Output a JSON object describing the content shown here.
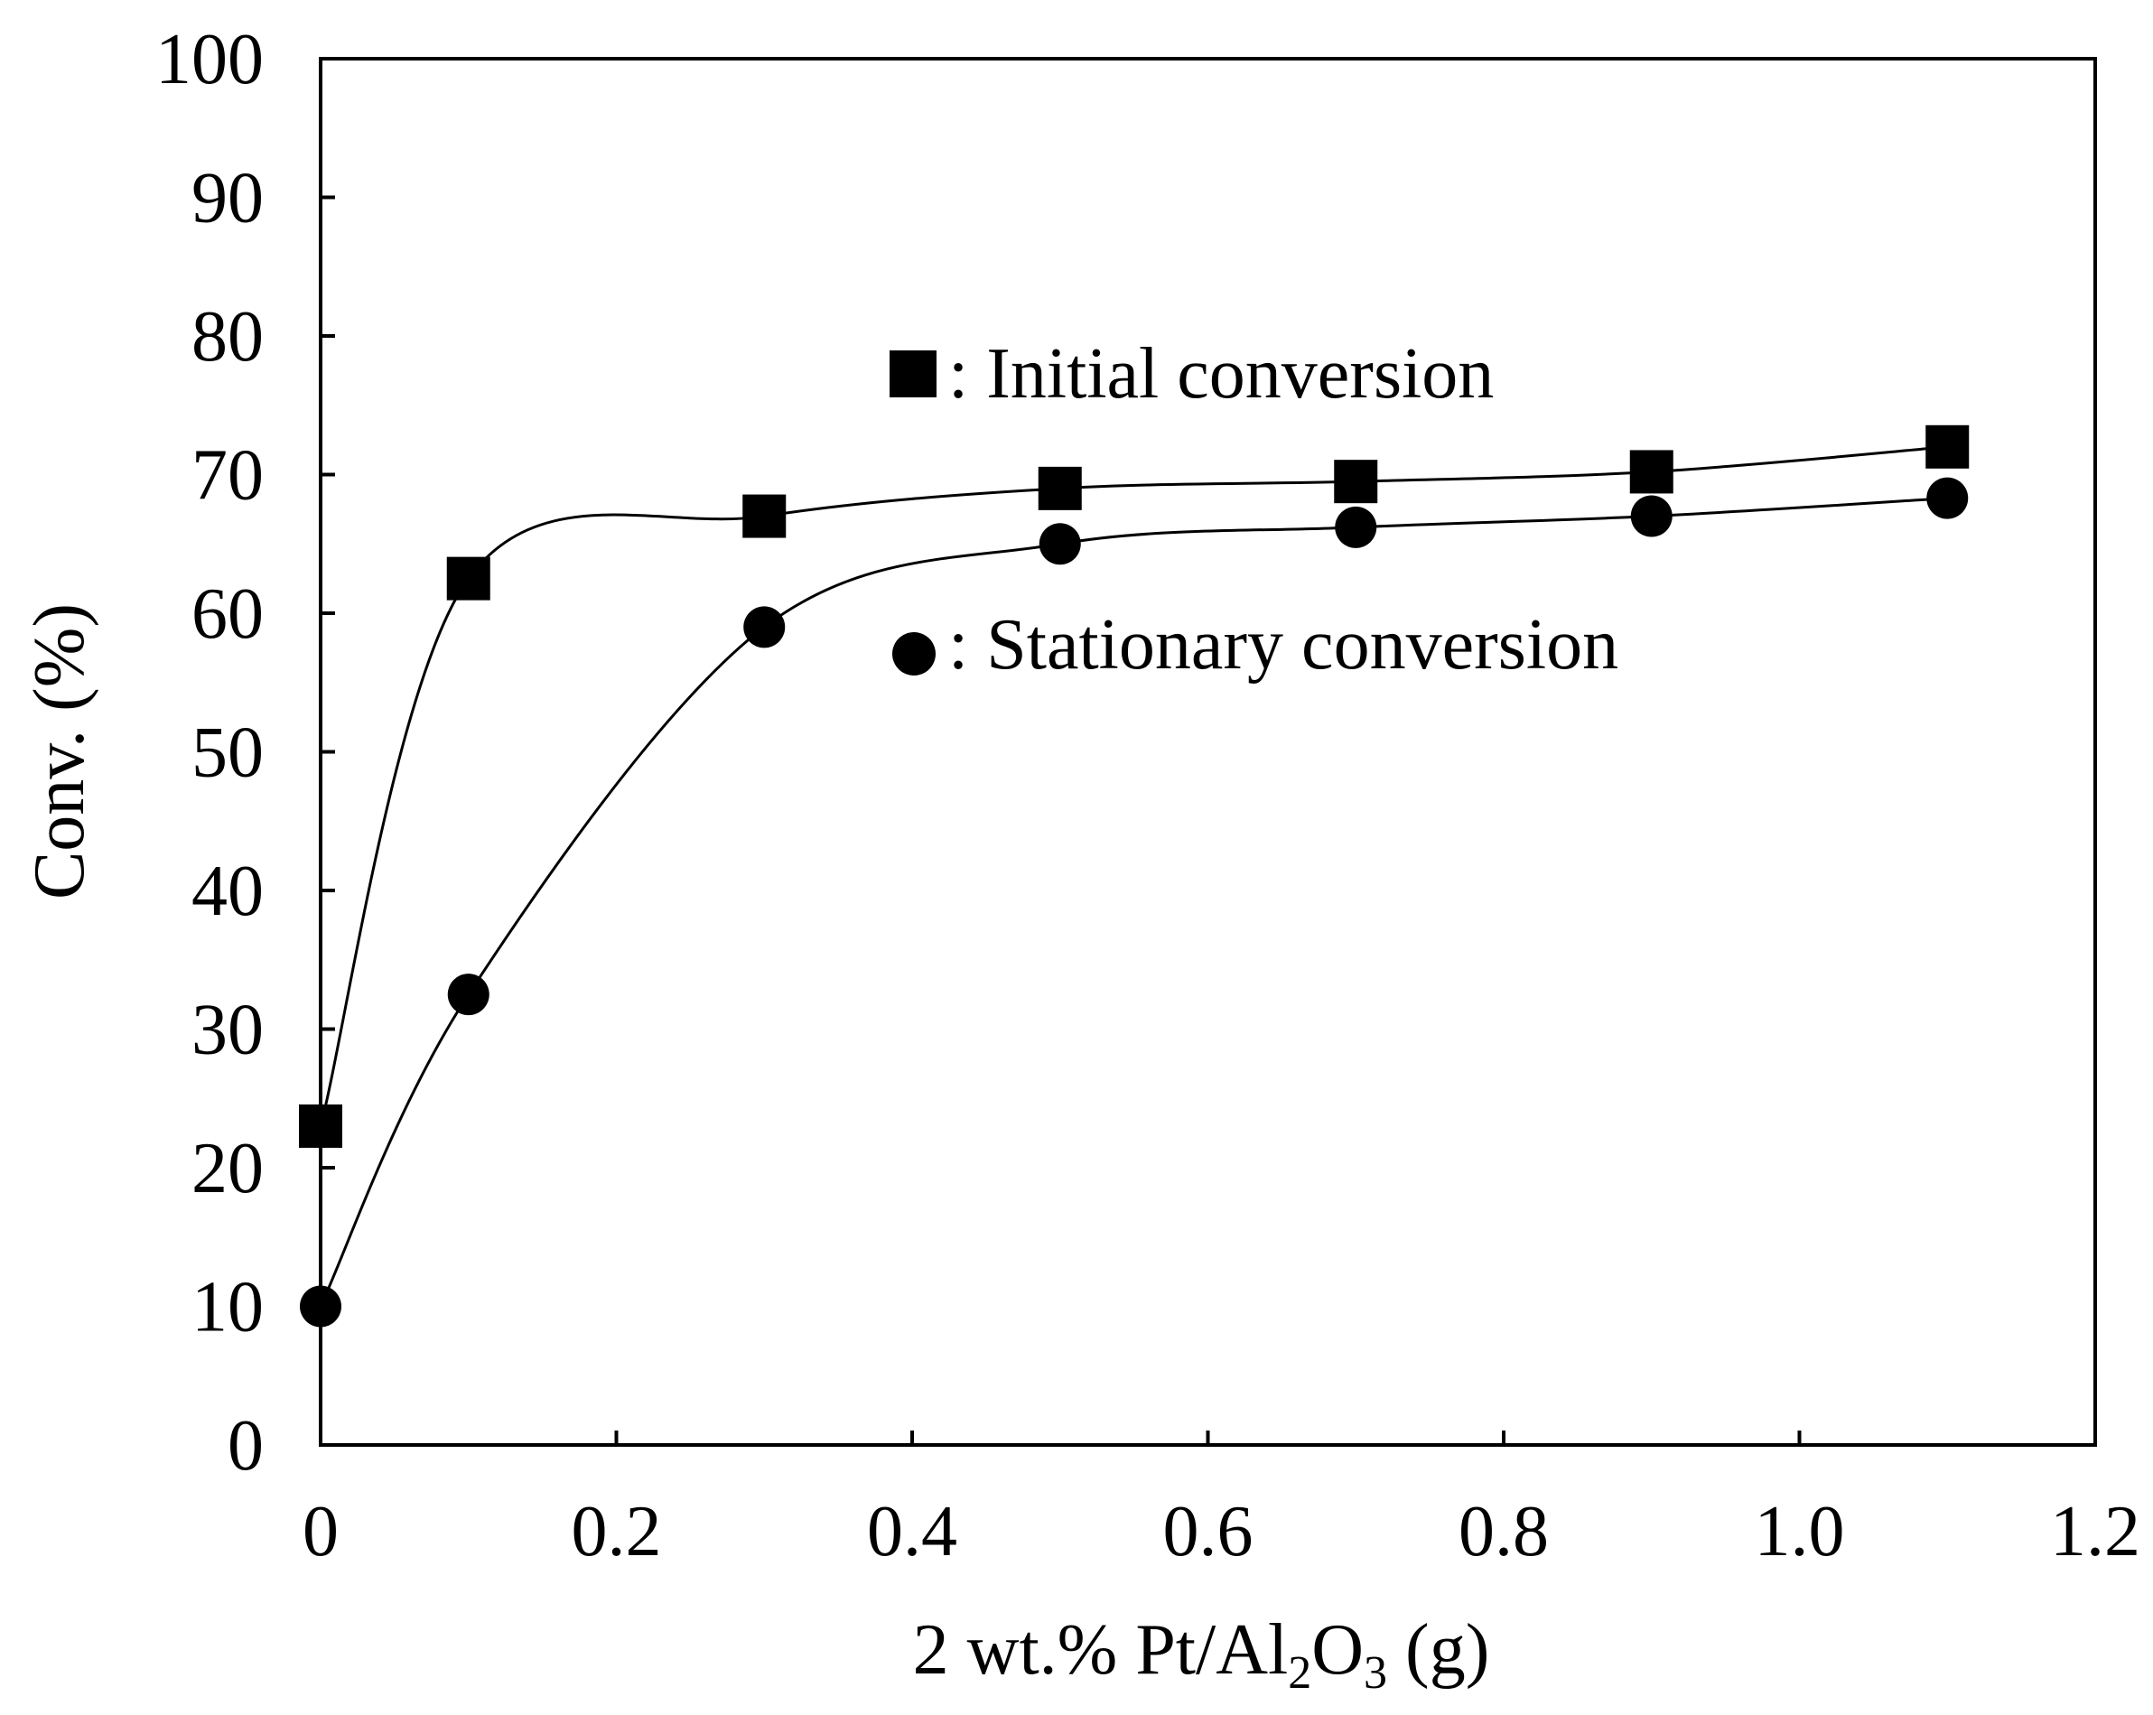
{
  "chart_data": {
    "type": "line",
    "xlabel": "2 wt.% Pt/Al2O3 (g)",
    "xlabel_parts": {
      "main": "2 wt.% Pt/Al",
      "sub1": "2",
      "mid": "O",
      "sub2": "3",
      "end": " (g)"
    },
    "ylabel": "Conv. (%)",
    "xlim": [
      0,
      1.2
    ],
    "ylim": [
      0,
      100
    ],
    "xticks": [
      "0",
      "0.2",
      "0.4",
      "0.6",
      "0.8",
      "1.0",
      "1.2"
    ],
    "yticks": [
      "0",
      "10",
      "20",
      "30",
      "40",
      "50",
      "60",
      "70",
      "80",
      "90",
      "100"
    ],
    "grid": false,
    "legend_position": "upper-right",
    "series": [
      {
        "name": ": Initial conversion",
        "marker": "square",
        "color": "#000000",
        "x": [
          0,
          0.1,
          0.3,
          0.5,
          0.7,
          0.9,
          1.1
        ],
        "y": [
          23,
          62.5,
          67,
          69,
          69.5,
          70.2,
          72
        ]
      },
      {
        "name": ": Stationary conversion",
        "marker": "circle",
        "color": "#000000",
        "x": [
          0,
          0.1,
          0.3,
          0.5,
          0.7,
          0.9,
          1.1
        ],
        "y": [
          10,
          32.5,
          59,
          65,
          66.2,
          67,
          68.3
        ]
      }
    ]
  }
}
